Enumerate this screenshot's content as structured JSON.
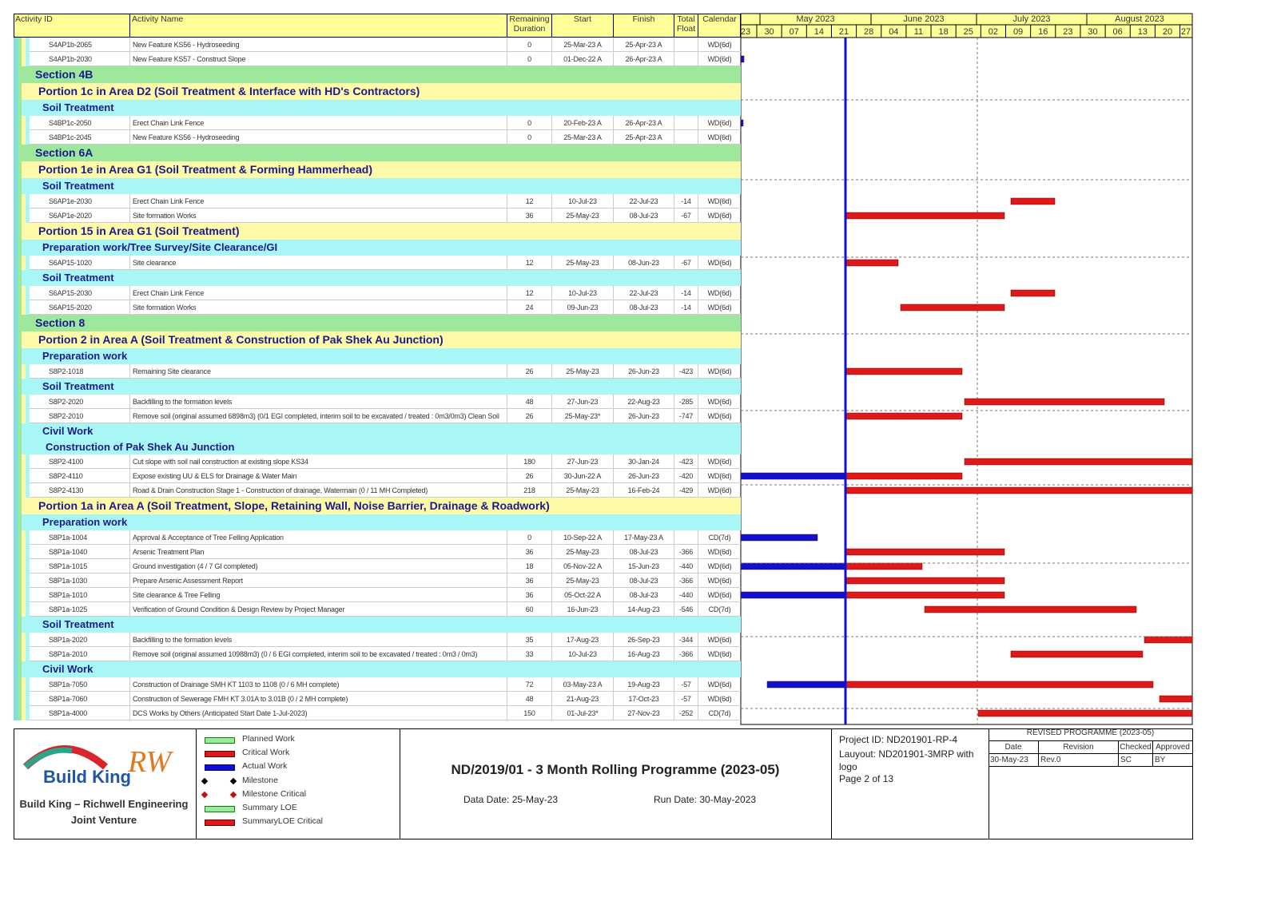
{
  "columns": {
    "id": "Activity ID",
    "name": "Activity Name",
    "duration": "Remaining Duration",
    "start": "Start",
    "finish": "Finish",
    "float": "Total Float",
    "calendar": "Calendar"
  },
  "timeline": {
    "months": [
      "May 2023",
      "June 2023",
      "July 2023",
      "August 2023"
    ],
    "days": [
      "23",
      "30",
      "07",
      "14",
      "21",
      "28",
      "04",
      "11",
      "18",
      "25",
      "02",
      "09",
      "16",
      "23",
      "30",
      "06",
      "13",
      "20",
      "27"
    ]
  },
  "rows": [
    {
      "id": "S4AP1b-2065",
      "name": "New Feature KS56 - Hydroseeding",
      "duration": 0,
      "start": "25-Mar-23 A",
      "finish": "25-Apr-23 A",
      "calendar": "WD(6d)"
    },
    {
      "id": "S4AP1b-2030",
      "name": "New Feature KS57 - Construct Slope",
      "duration": 0,
      "start": "01-Dec-22 A",
      "finish": "26-Apr-23 A",
      "calendar": "WD(6d)"
    },
    {
      "section": "Section 4B"
    },
    {
      "portion": "Portion 1c in Area D2   (Soil Treatment & Interface with HD's Contractors)"
    },
    {
      "group": "Soil Treatment"
    },
    {
      "id": "S4BP1c-2050",
      "name": "Erect Chain Link Fence",
      "duration": 0,
      "start": "20-Feb-23 A",
      "finish": "26-Apr-23 A",
      "calendar": "WD(6d)"
    },
    {
      "id": "S4BP1c-2045",
      "name": "New Feature KS56 - Hydroseeding",
      "duration": 0,
      "start": "25-Mar-23 A",
      "finish": "25-Apr-23 A",
      "calendar": "WD(6d)"
    },
    {
      "section": "Section 6A"
    },
    {
      "portion": "Portion 1e in Area G1   (Soil Treatment & Forming Hammerhead)"
    },
    {
      "group": "Soil Treatment"
    },
    {
      "id": "S6AP1e-2030",
      "name": "Erect Chain Link Fence",
      "duration": 12,
      "start": "10-Jul-23",
      "finish": "22-Jul-23",
      "float": -14,
      "calendar": "WD(6d)"
    },
    {
      "id": "S6AP1e-2020",
      "name": "Site formation Works",
      "duration": 36,
      "start": "25-May-23",
      "finish": "08-Jul-23",
      "float": -67,
      "calendar": "WD(6d)"
    },
    {
      "portion": "Portion 15 in Area G1   (Soil Treatment)"
    },
    {
      "group": "Preparation work/Tree Survey/Site Clearance/GI"
    },
    {
      "id": "S6AP15-1020",
      "name": "Site clearance",
      "duration": 12,
      "start": "25-May-23",
      "finish": "08-Jun-23",
      "float": -67,
      "calendar": "WD(6d)"
    },
    {
      "group": "Soil Treatment"
    },
    {
      "id": "S6AP15-2030",
      "name": "Erect Chain Link Fence",
      "duration": 12,
      "start": "10-Jul-23",
      "finish": "22-Jul-23",
      "float": -14,
      "calendar": "WD(6d)"
    },
    {
      "id": "S6AP15-2020",
      "name": "Site formation Works",
      "duration": 24,
      "start": "09-Jun-23",
      "finish": "08-Jul-23",
      "float": -14,
      "calendar": "WD(6d)"
    },
    {
      "section": "Section 8"
    },
    {
      "portion": "Portion 2 in Area A   (Soil Treatment & Construction of Pak Shek Au Junction)"
    },
    {
      "group": "Preparation work"
    },
    {
      "id": "S8P2-1018",
      "name": "Remaining Site clearance",
      "duration": 26,
      "start": "25-May-23",
      "finish": "26-Jun-23",
      "float": -423,
      "calendar": "WD(6d)"
    },
    {
      "group": "Soil Treatment"
    },
    {
      "id": "S8P2-2020",
      "name": "Backfilling to the formation levels",
      "duration": 48,
      "start": "27-Jun-23",
      "finish": "22-Aug-23",
      "float": -285,
      "calendar": "WD(6d)"
    },
    {
      "id": "S8P2-2010",
      "name": "Remove soil (original assumed 6898m3) (0/1 EGI completed, interim soil to be excavated / treated : 0m3/0m3) Clean Soil",
      "duration": 26,
      "start": "25-May-23*",
      "finish": "26-Jun-23",
      "float": -747,
      "calendar": "WD(6d)"
    },
    {
      "group": "Civil Work"
    },
    {
      "subgroup": "Construction of Pak Shek Au Junction"
    },
    {
      "id": "S8P2-4100",
      "name": "Cut slope with soil nail construction at existing slope KS34",
      "duration": 180,
      "start": "27-Jun-23",
      "finish": "30-Jan-24",
      "float": -423,
      "calendar": "WD(6d)"
    },
    {
      "id": "S8P2-4110",
      "name": "Expose existing UU & ELS for Drainage & Water Main",
      "duration": 26,
      "start": "30-Jun-22 A",
      "finish": "26-Jun-23",
      "float": -420,
      "calendar": "WD(6d)"
    },
    {
      "id": "S8P2-4130",
      "name": "Road & Drain Construction Stage 1 - Construction of drainage, Watermain   (0 / 11 MH Completed)",
      "duration": 218,
      "start": "25-May-23",
      "finish": "16-Feb-24",
      "float": -429,
      "calendar": "WD(6d)"
    },
    {
      "portion": "Portion 1a in Area A   (Soil Treatment, Slope, Retaining Wall, Noise Barrier, Drainage & Roadwork)"
    },
    {
      "group": "Preparation work"
    },
    {
      "id": "S8P1a-1004",
      "name": "Approval & Acceptance of Tree Felling Application",
      "duration": 0,
      "start": "10-Sep-22 A",
      "finish": "17-May-23 A",
      "calendar": "CD(7d)"
    },
    {
      "id": "S8P1a-1040",
      "name": "Arsenic Treatment Plan",
      "duration": 36,
      "start": "25-May-23",
      "finish": "08-Jul-23",
      "float": -366,
      "calendar": "WD(6d)"
    },
    {
      "id": "S8P1a-1015",
      "name": "Ground investigation (4 / 7 GI completed)",
      "duration": 18,
      "start": "05-Nov-22 A",
      "finish": "15-Jun-23",
      "float": -440,
      "calendar": "WD(6d)"
    },
    {
      "id": "S8P1a-1030",
      "name": "Prepare Arsenic Assessment Report",
      "duration": 36,
      "start": "25-May-23",
      "finish": "08-Jul-23",
      "float": -366,
      "calendar": "WD(6d)"
    },
    {
      "id": "S8P1a-1010",
      "name": "Site clearance & Tree Felling",
      "duration": 36,
      "start": "05-Oct-22 A",
      "finish": "08-Jul-23",
      "float": -440,
      "calendar": "WD(6d)"
    },
    {
      "id": "S8P1a-1025",
      "name": "Verification of Ground Condition & Design Review by Project Manager",
      "duration": 60,
      "start": "16-Jun-23",
      "finish": "14-Aug-23",
      "float": -546,
      "calendar": "CD(7d)"
    },
    {
      "group": "Soil Treatment"
    },
    {
      "id": "S8P1a-2020",
      "name": "Backfilling to the formation levels",
      "duration": 35,
      "start": "17-Aug-23",
      "finish": "26-Sep-23",
      "float": -344,
      "calendar": "WD(6d)"
    },
    {
      "id": "S8P1a-2010",
      "name": "Remove soil (original assumed 10988m3) (0 / 6 EGI completed, interim soil to be excavated / treated : 0m3 / 0m3)",
      "duration": 33,
      "start": "10-Jul-23",
      "finish": "16-Aug-23",
      "float": -366,
      "calendar": "WD(6d)"
    },
    {
      "group": "Civil Work"
    },
    {
      "id": "S8P1a-7050",
      "name": "Construction of Drainage SMH KT 1103 to 1108 (0 / 6 MH complete)",
      "duration": 72,
      "start": "03-May-23 A",
      "finish": "19-Aug-23",
      "float": -57,
      "calendar": "WD(6d)"
    },
    {
      "id": "S8P1a-7060",
      "name": "Construction of Sewerage FMH KT 3.01A to 3.01B (0 / 2 MH complete)",
      "duration": 48,
      "start": "21-Aug-23",
      "finish": "17-Oct-23",
      "float": -57,
      "calendar": "WD(6d)"
    },
    {
      "id": "S8P1a-4000",
      "name": "DCS Works by Others (Anticipated Start Date 1-Jul-2023)",
      "duration": 150,
      "start": "01-Jul-23*",
      "finish": "27-Nov-23",
      "float": -252,
      "calendar": "CD(7d)"
    }
  ],
  "legend": [
    "Planned Work",
    "Critical Work",
    "Actual Work",
    "Milestone",
    "Milestone Critical",
    "Summary LOE",
    "SummaryLOE Critical"
  ],
  "logo": {
    "brand": "Build King",
    "mark": "RW",
    "caption_lines": [
      "Build King – Richwell Engineering",
      "Joint Venture"
    ]
  },
  "footer": {
    "title": "ND/2019/01 - 3 Month Rolling Programme (2023-05)",
    "data_date": "Data Date: 25-May-23",
    "run_date": "Run Date: 30-May-2023",
    "project_id": "Project ID: ND201901-RP-4",
    "layout": "Lauyout: ND201901-3MRP with logo",
    "page": "Page 2 of 13"
  },
  "revision": {
    "title": "REVISED PROGRAMME (2023-05)",
    "headers": [
      "Date",
      "Revision",
      "Checked",
      "Approved"
    ],
    "row": [
      "30-May-23",
      "Rev.0",
      "SC",
      "BY"
    ]
  }
}
